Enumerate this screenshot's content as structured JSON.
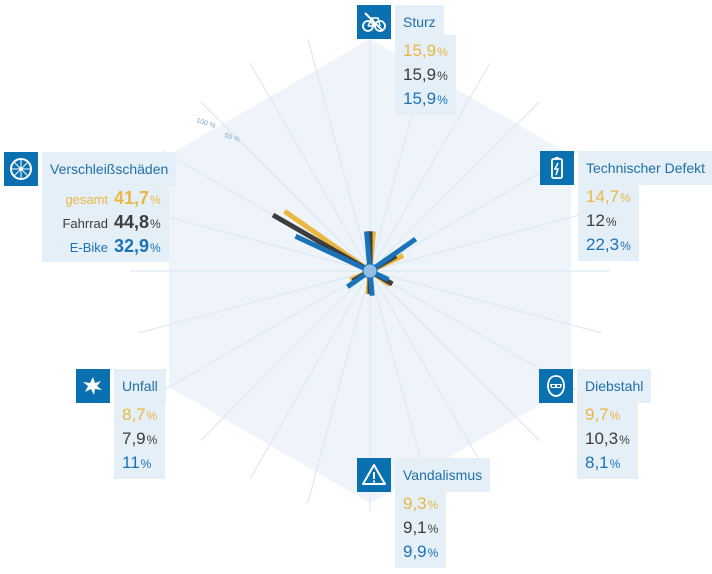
{
  "colors": {
    "gesamt": "#eab842",
    "fahrrad": "#3d3d3d",
    "ebike": "#1a73b8",
    "accent": "#0a70b0",
    "panel": "#e4eff7",
    "web": "#dce9f4"
  },
  "scale": {
    "ring_100": "100 %",
    "ring_50": "50 %"
  },
  "chart_data": {
    "type": "radar",
    "title": "",
    "max_value": 100,
    "scale_labels": [
      "50 %",
      "100 %"
    ],
    "series_labels": [
      "gesamt",
      "Fahrrad",
      "E-Bike"
    ],
    "unit": "%",
    "categories": [
      {
        "name": "Sturz",
        "icon": "bicycle-crash-icon",
        "gesamt": 15.9,
        "fahrrad": 15.9,
        "ebike": 15.9,
        "gesamt_label": "15,9",
        "fahrrad_label": "15,9",
        "ebike_label": "15,9"
      },
      {
        "name": "Technischer Defekt",
        "icon": "battery-icon",
        "gesamt": 14.7,
        "fahrrad": 12,
        "ebike": 22.3,
        "gesamt_label": "14,7",
        "fahrrad_label": "12",
        "ebike_label": "22,3"
      },
      {
        "name": "Diebstahl",
        "icon": "thief-mask-icon",
        "gesamt": 9.7,
        "fahrrad": 10.3,
        "ebike": 8.1,
        "gesamt_label": "9,7",
        "fahrrad_label": "10,3",
        "ebike_label": "8,1"
      },
      {
        "name": "Vandalismus",
        "icon": "warning-triangle-icon",
        "gesamt": 9.3,
        "fahrrad": 9.1,
        "ebike": 9.9,
        "gesamt_label": "9,3",
        "fahrrad_label": "9,1",
        "ebike_label": "9,9"
      },
      {
        "name": "Unfall",
        "icon": "crash-impact-icon",
        "gesamt": 8.7,
        "fahrrad": 7.9,
        "ebike": 11,
        "gesamt_label": "8,7",
        "fahrrad_label": "7,9",
        "ebike_label": "11"
      },
      {
        "name": "Verschleißschäden",
        "icon": "wheel-icon",
        "gesamt": 41.7,
        "fahrrad": 44.8,
        "ebike": 32.9,
        "gesamt_label": "41,7",
        "fahrrad_label": "44,8",
        "ebike_label": "32,9"
      }
    ]
  }
}
